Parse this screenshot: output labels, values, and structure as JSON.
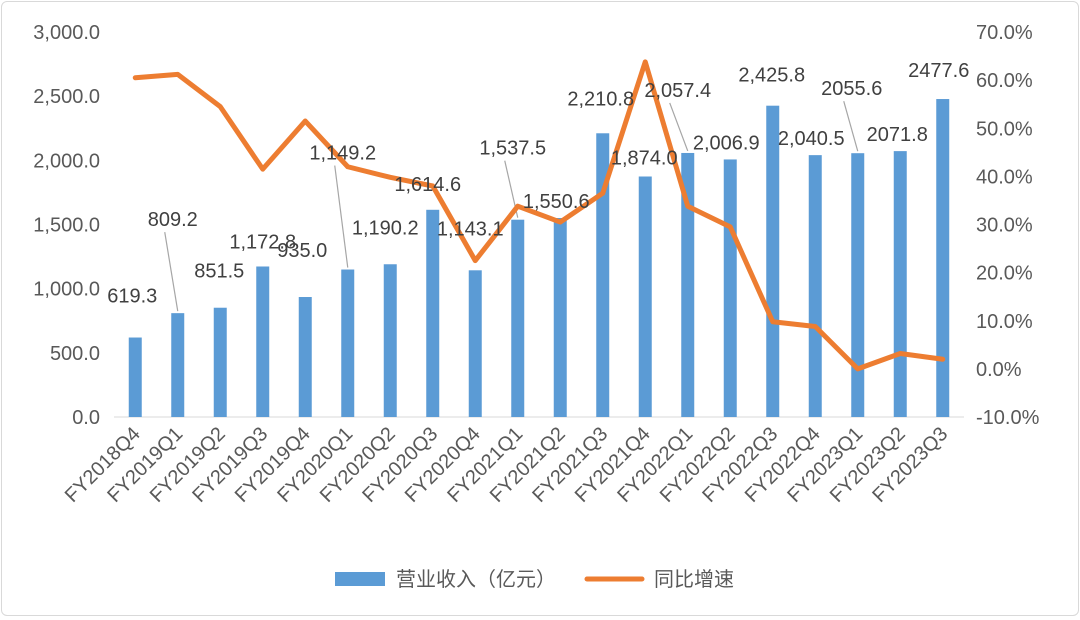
{
  "chart_data": {
    "type": "bar+line",
    "categories": [
      "FY2018Q4",
      "FY2019Q1",
      "FY2019Q2",
      "FY2019Q3",
      "FY2019Q4",
      "FY2020Q1",
      "FY2020Q2",
      "FY2020Q3",
      "FY2020Q4",
      "FY2021Q1",
      "FY2021Q2",
      "FY2021Q3",
      "FY2021Q4",
      "FY2022Q1",
      "FY2022Q2",
      "FY2022Q3",
      "FY2022Q4",
      "FY2023Q1",
      "FY2023Q2",
      "FY2023Q3"
    ],
    "series": [
      {
        "name": "营业收入（亿元）",
        "type": "bar",
        "axis": "left",
        "color": "#5b9bd5",
        "values": [
          619.3,
          809.2,
          851.5,
          1172.8,
          935.0,
          1149.2,
          1190.2,
          1614.6,
          1143.1,
          1537.5,
          1550.6,
          2210.8,
          1874.0,
          2057.4,
          2006.9,
          2425.8,
          2040.5,
          2055.6,
          2071.8,
          2477.6
        ],
        "labels": [
          "619.3",
          "809.2",
          "851.5",
          "1,172.8",
          "935.0",
          "1,149.2",
          "1,190.2",
          "1,614.6",
          "1,143.1",
          "1,537.5",
          "1,550.6",
          "2,210.8",
          "1,874.0",
          "2,057.4",
          "2,006.9",
          "2,425.8",
          "2,040.5",
          "2055.6",
          "2071.8",
          "2477.6"
        ]
      },
      {
        "name": "同比增速",
        "type": "line",
        "axis": "right",
        "color": "#ed7d31",
        "values": [
          60.5,
          61.2,
          54.5,
          41.5,
          51.5,
          42.0,
          39.8,
          38.0,
          22.5,
          33.8,
          30.5,
          36.5,
          63.8,
          33.8,
          29.5,
          9.8,
          8.8,
          0.0,
          3.2,
          2.0
        ]
      }
    ],
    "y_left": {
      "min": 0,
      "max": 3000,
      "step": 500,
      "ticks": [
        "0.0",
        "500.0",
        "1,000.0",
        "1,500.0",
        "2,000.0",
        "2,500.0",
        "3,000.0"
      ]
    },
    "y_right": {
      "min": -10,
      "max": 70,
      "step": 10,
      "ticks": [
        "-10.0%",
        "0.0%",
        "10.0%",
        "20.0%",
        "30.0%",
        "40.0%",
        "50.0%",
        "60.0%",
        "70.0%"
      ]
    },
    "legend_position": "bottom",
    "grid": false
  }
}
